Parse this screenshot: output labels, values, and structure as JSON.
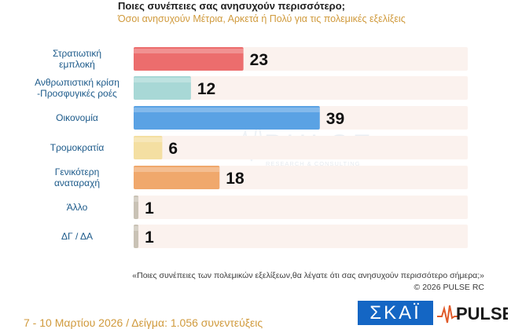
{
  "header": {
    "title": "Ποιες συνέπειες σας ανησυχούν περισσότερο;",
    "subtitle": "Όσοι ανησυχούν Μέτρια, Αρκετά ή Πολύ για τις πολεμικές εξελίξεις"
  },
  "chart_data": {
    "type": "bar",
    "orientation": "horizontal",
    "categories": [
      [
        "Στρατιωτική",
        "εμπλοκή"
      ],
      [
        "Ανθρωπιστική κρίση",
        "-Προσφυγικές ροές"
      ],
      [
        "Οικονομία"
      ],
      [
        "Τρομοκρατία"
      ],
      [
        "Γενικότερη",
        "αναταραχή"
      ],
      [
        "Άλλο"
      ],
      [
        "ΔΓ / ΔΑ"
      ]
    ],
    "values": [
      23,
      12,
      39,
      6,
      18,
      1,
      1
    ],
    "bar_colors": [
      "#ec6d6d",
      "#a8d8d6",
      "#5aa2e4",
      "#f4dfa2",
      "#f0a86c",
      "#c9c2b5",
      "#c9c2b5"
    ],
    "track_color": "#fbf2ee",
    "xlim": [
      0,
      70
    ],
    "grid": false,
    "legend": "none"
  },
  "watermark": {
    "name": "PULSE",
    "tagline": "RESEARCH & CONSULTING"
  },
  "footer": {
    "question": "«Ποιες συνέπειες των πολεμικών εξελίξεων,θα λέγατε ότι σας ανησυχούν περισσότερο σήμερα;»",
    "copyright": "© 2026 PULSE RC",
    "fieldwork": "7 - 10 Μαρτίου 2026 / Δείγμα: 1.056 συνεντεύξεις"
  },
  "logos": {
    "skai": "ΣΚΑΪ",
    "pulse": "PULSE"
  }
}
